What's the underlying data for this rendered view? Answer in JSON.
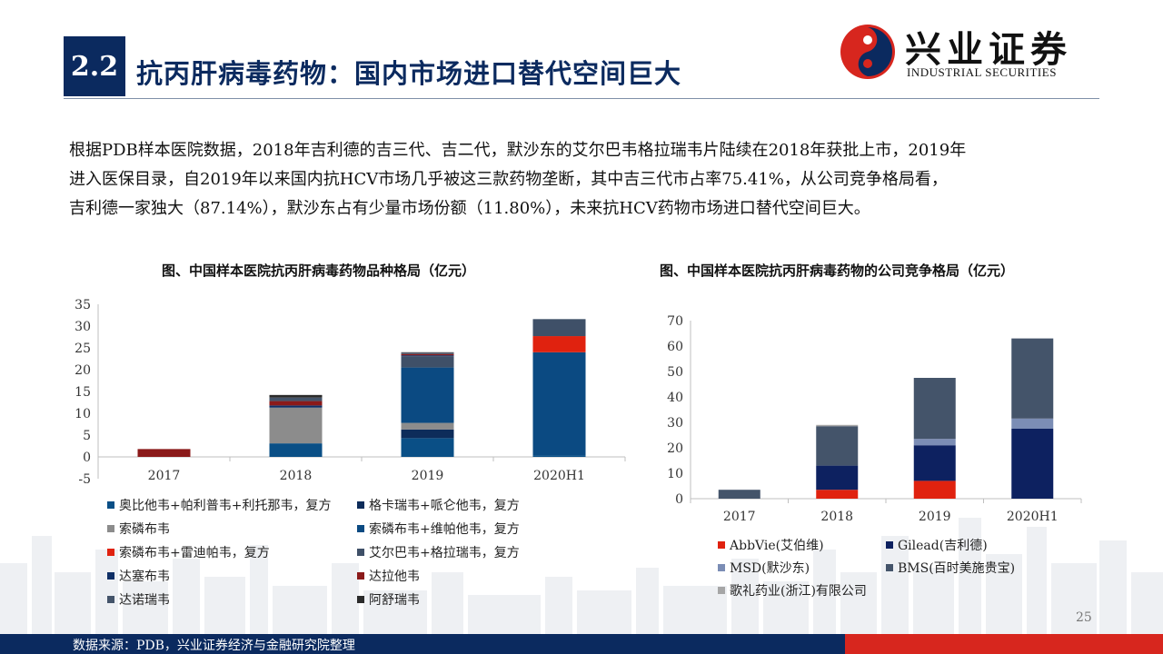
{
  "header": {
    "section_number": "2.2",
    "title": "抗丙肝病毒药物：国内市场进口替代空间巨大",
    "logo_cn": "兴业证券",
    "logo_en": "INDUSTRIAL SECURITIES"
  },
  "paragraph": [
    "根据PDB样本医院数据，2018年吉利德的吉三代、吉二代，默沙东的艾尔巴韦格拉瑞韦片陆续在2018年获批上市，2019年",
    "进入医保目录，自2019年以来国内抗HCV市场几乎被这三款药物垄断，其中吉三代市占率75.41%，从公司竞争格局看，",
    "吉利德一家独大（87.14%），默沙东占有少量市场份额（11.80%），未来抗HCV药物市场进口替代空间巨大。"
  ],
  "colors": {
    "navy": "#0b2a5f",
    "red": "#d7261e"
  },
  "chart_data": [
    {
      "type": "bar",
      "stacked": true,
      "title": "图、中国样本医院抗丙肝病毒药物品种格局（亿元）",
      "categories": [
        "2017",
        "2018",
        "2019",
        "2020H1"
      ],
      "ylim": [
        -5,
        35
      ],
      "yticks": [
        -5,
        0,
        5,
        10,
        15,
        20,
        25,
        30,
        35
      ],
      "legend_position": "bottom",
      "series": [
        {
          "name": "奥比他韦+帕利普韦+利托那韦，复方",
          "color": "#0a4f86",
          "values": [
            0,
            3.1,
            4.3,
            0.4
          ]
        },
        {
          "name": "格卡瑞韦+哌仑他韦，复方",
          "color": "#0d2c5a",
          "values": [
            0,
            0,
            2.0,
            0
          ]
        },
        {
          "name": "索磷布韦",
          "color": "#8c8c8c",
          "values": [
            0,
            8.2,
            1.5,
            0
          ]
        },
        {
          "name": "索磷布韦+维帕他韦，复方",
          "color": "#0b4a82",
          "values": [
            0,
            0,
            12.7,
            23.6
          ]
        },
        {
          "name": "索磷布韦+雷迪帕韦，复方",
          "color": "#e0220f",
          "values": [
            0,
            0,
            0,
            3.7
          ]
        },
        {
          "name": "艾尔巴韦+格拉瑞韦，复方",
          "color": "#3f5068",
          "values": [
            0,
            0,
            2.6,
            3.9
          ]
        },
        {
          "name": "达塞布韦",
          "color": "#0f2f66",
          "values": [
            0,
            0.5,
            0.2,
            0
          ]
        },
        {
          "name": "达拉他韦",
          "color": "#8b1a1a",
          "values": [
            1.8,
            1.0,
            0.3,
            0
          ]
        },
        {
          "name": "达诺瑞韦",
          "color": "#44546a",
          "values": [
            0,
            0.8,
            0.3,
            0
          ]
        },
        {
          "name": "阿舒瑞韦",
          "color": "#2b2b2b",
          "values": [
            0,
            0.6,
            0.1,
            0
          ]
        }
      ]
    },
    {
      "type": "bar",
      "stacked": true,
      "title": "图、中国样本医院抗丙肝病毒药物的公司竞争格局（亿元）",
      "categories": [
        "2017",
        "2018",
        "2019",
        "2020H1"
      ],
      "ylim": [
        0,
        70
      ],
      "yticks": [
        0,
        10,
        20,
        30,
        40,
        50,
        60,
        70
      ],
      "legend_position": "bottom",
      "series": [
        {
          "name": "AbbVie(艾伯维)",
          "color": "#e0220f",
          "values": [
            0,
            3.5,
            7.0,
            0
          ]
        },
        {
          "name": "Gilead(吉利德)",
          "color": "#0d2160",
          "values": [
            0,
            9.5,
            14.0,
            27.5
          ]
        },
        {
          "name": "MSD(默沙东)",
          "color": "#7b8db5",
          "values": [
            0,
            0,
            2.5,
            4.0
          ]
        },
        {
          "name": "BMS(百时美施贵宝)",
          "color": "#44546a",
          "values": [
            3.5,
            15.5,
            24.0,
            31.5
          ]
        },
        {
          "name": "歌礼药业(浙江)有限公司",
          "color": "#a6a6a6",
          "values": [
            0,
            0.5,
            0,
            0
          ]
        }
      ]
    }
  ],
  "page_number": "25",
  "footer": "数据来源：PDB，兴业证券经济与金融研究院整理"
}
